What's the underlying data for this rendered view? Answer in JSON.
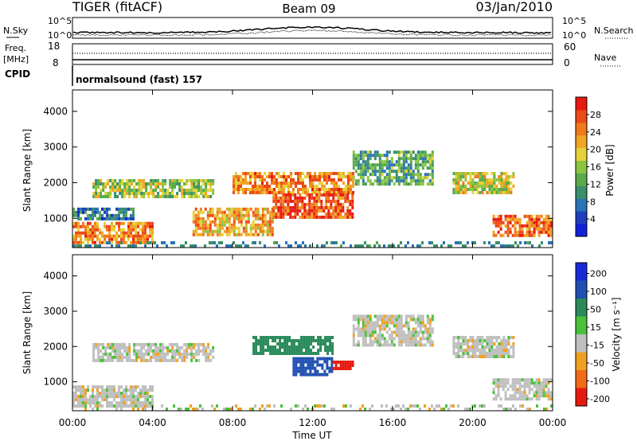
{
  "header": {
    "station": "TIGER (fitACF)",
    "beam": "Beam 09",
    "date": "03/Jan/2010"
  },
  "summary": {
    "nsky_label": "N.Sky",
    "nsky_scale_top": "10^5",
    "nsky_scale_bottom": "10^0",
    "nsearch_label": "N.Search",
    "nsearch_scale_top": "10^5",
    "nsearch_scale_bottom": "10^0",
    "freq_label_1": "Freq.",
    "freq_label_2": "[MHz]",
    "freq_ticks": [
      "18",
      "8"
    ],
    "nave_ticks": [
      "60",
      "0"
    ],
    "nave_label": "Nave",
    "cpid_label": "CPID",
    "cpid_value": "normalsound (fast) 157"
  },
  "chart_data": [
    {
      "type": "heatmap",
      "name": "power",
      "ylabel": "Slant Range [km]",
      "yticks": [
        1000,
        2000,
        3000,
        4000
      ],
      "ylim": [
        180,
        4600
      ],
      "colorbar": {
        "label": "Power [dB]",
        "ticks": [
          "4",
          "8",
          "12",
          "16",
          "20",
          "24",
          "28"
        ],
        "tick_values": [
          4,
          8,
          12,
          16,
          20,
          24,
          28
        ],
        "range": [
          0,
          32
        ],
        "colors": [
          "#1222d8",
          "#1f3fbf",
          "#2a73b8",
          "#3a8f6a",
          "#5aaa4a",
          "#8cc640",
          "#e6d23a",
          "#f0a622",
          "#f07a1c",
          "#ec4a18",
          "#e61a10"
        ]
      },
      "echo_bands": [
        {
          "start_h": 0,
          "end_h": 4,
          "range_lo": 300,
          "range_hi": 900,
          "db": 24
        },
        {
          "start_h": 0,
          "end_h": 3,
          "range_lo": 1000,
          "range_hi": 1300,
          "db": 8
        },
        {
          "start_h": 1,
          "end_h": 7,
          "range_lo": 1600,
          "range_hi": 2100,
          "db": 16
        },
        {
          "start_h": 6,
          "end_h": 10,
          "range_lo": 500,
          "range_hi": 1300,
          "db": 22
        },
        {
          "start_h": 8,
          "end_h": 14,
          "range_lo": 1700,
          "range_hi": 2300,
          "db": 24
        },
        {
          "start_h": 10,
          "end_h": 14,
          "range_lo": 1000,
          "range_hi": 1700,
          "db": 28
        },
        {
          "start_h": 14,
          "end_h": 18,
          "range_lo": 2000,
          "range_hi": 2900,
          "db": 12
        },
        {
          "start_h": 19,
          "end_h": 22,
          "range_lo": 1700,
          "range_hi": 2300,
          "db": 18
        },
        {
          "start_h": 21,
          "end_h": 24,
          "range_lo": 500,
          "range_hi": 1100,
          "db": 26
        }
      ]
    },
    {
      "type": "heatmap",
      "name": "velocity",
      "ylabel": "Slant Range [km]",
      "yticks": [
        1000,
        2000,
        3000,
        4000
      ],
      "ylim": [
        180,
        4600
      ],
      "xlabel": "Time UT",
      "xticks": [
        "00:00",
        "04:00",
        "08:00",
        "12:00",
        "16:00",
        "20:00",
        "00:00"
      ],
      "xtick_hours": [
        0,
        4,
        8,
        12,
        16,
        20,
        24
      ],
      "colorbar": {
        "label": "Velocity [m s⁻¹]",
        "ticks": [
          "200",
          "100",
          "50",
          "15",
          "-15",
          "-50",
          "-100",
          "-200"
        ],
        "colors": [
          "#1a2ad8",
          "#1f4fb0",
          "#2a8a5a",
          "#49c23a",
          "#bfbfbf",
          "#f0a020",
          "#f06a18",
          "#e61a10"
        ]
      },
      "echo_bands": [
        {
          "start_h": 0,
          "end_h": 4,
          "range_lo": 300,
          "range_hi": 900,
          "v": 0
        },
        {
          "start_h": 1,
          "end_h": 7,
          "range_lo": 1600,
          "range_hi": 2100,
          "v": 0
        },
        {
          "start_h": 9,
          "end_h": 13,
          "range_lo": 1800,
          "range_hi": 2300,
          "v": 80
        },
        {
          "start_h": 11,
          "end_h": 13,
          "range_lo": 1200,
          "range_hi": 1700,
          "v": 150
        },
        {
          "start_h": 13,
          "end_h": 14,
          "range_lo": 1400,
          "range_hi": 1600,
          "v": -200
        },
        {
          "start_h": 14,
          "end_h": 18,
          "range_lo": 2000,
          "range_hi": 2900,
          "v": 0
        },
        {
          "start_h": 19,
          "end_h": 22,
          "range_lo": 1700,
          "range_hi": 2300,
          "v": 0
        },
        {
          "start_h": 21,
          "end_h": 24,
          "range_lo": 500,
          "range_hi": 1100,
          "v": 0
        }
      ]
    }
  ]
}
